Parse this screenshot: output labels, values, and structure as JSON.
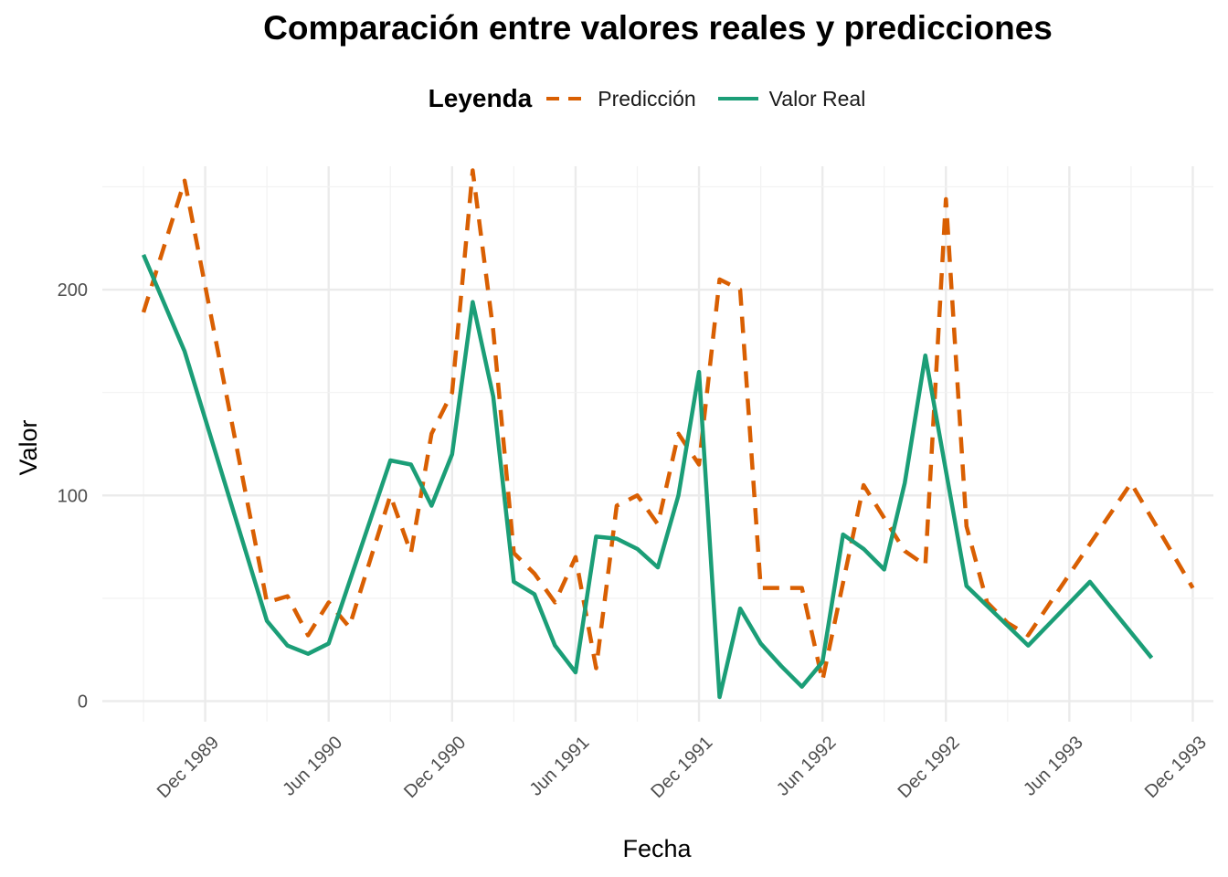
{
  "chart_data": {
    "type": "line",
    "title": "Comparación entre valores reales y predicciones",
    "xlabel": "Fecha",
    "ylabel": "Valor",
    "legend_title": "Leyenda",
    "legend_position": "top",
    "grid": true,
    "x_tick_labels": [
      "Dec 1989",
      "Jun 1990",
      "Dec 1990",
      "Jun 1991",
      "Dec 1991",
      "Jun 1992",
      "Dec 1992",
      "Jun 1993",
      "Dec 1993"
    ],
    "y_ticks": [
      0,
      100,
      200
    ],
    "ylim": [
      -10,
      260
    ],
    "xlim": [
      "1989-07",
      "1994-01"
    ],
    "series": [
      {
        "name": "Predicción",
        "color": "#D95F02",
        "style": "dashed",
        "points": [
          [
            "1989-09",
            189
          ],
          [
            "1989-11",
            253
          ],
          [
            "1990-03",
            48
          ],
          [
            "1990-04",
            51
          ],
          [
            "1990-05",
            32
          ],
          [
            "1990-06",
            48
          ],
          [
            "1990-07",
            36
          ],
          [
            "1990-09",
            100
          ],
          [
            "1990-10",
            72
          ],
          [
            "1990-11",
            130
          ],
          [
            "1990-12",
            150
          ],
          [
            "1991-01",
            258
          ],
          [
            "1991-02",
            180
          ],
          [
            "1991-03",
            72
          ],
          [
            "1991-04",
            62
          ],
          [
            "1991-05",
            48
          ],
          [
            "1991-06",
            70
          ],
          [
            "1991-07",
            16
          ],
          [
            "1991-08",
            95
          ],
          [
            "1991-09",
            100
          ],
          [
            "1991-10",
            86
          ],
          [
            "1991-11",
            130
          ],
          [
            "1991-12",
            115
          ],
          [
            "1992-01",
            205
          ],
          [
            "1992-02",
            200
          ],
          [
            "1992-03",
            55
          ],
          [
            "1992-05",
            55
          ],
          [
            "1992-06",
            10
          ],
          [
            "1992-08",
            105
          ],
          [
            "1992-10",
            73
          ],
          [
            "1992-11",
            66
          ],
          [
            "1992-12",
            244
          ],
          [
            "1993-01",
            85
          ],
          [
            "1993-02",
            48
          ],
          [
            "1993-03",
            38
          ],
          [
            "1993-04",
            32
          ],
          [
            "1993-09",
            106
          ],
          [
            "1993-12",
            55
          ]
        ]
      },
      {
        "name": "Valor Real",
        "color": "#1B9E77",
        "style": "solid",
        "points": [
          [
            "1989-09",
            217
          ],
          [
            "1989-11",
            170
          ],
          [
            "1990-03",
            39
          ],
          [
            "1990-04",
            27
          ],
          [
            "1990-05",
            23
          ],
          [
            "1990-06",
            28
          ],
          [
            "1990-09",
            117
          ],
          [
            "1990-10",
            115
          ],
          [
            "1990-11",
            95
          ],
          [
            "1990-12",
            120
          ],
          [
            "1991-01",
            194
          ],
          [
            "1991-02",
            148
          ],
          [
            "1991-03",
            58
          ],
          [
            "1991-04",
            52
          ],
          [
            "1991-05",
            27
          ],
          [
            "1991-06",
            14
          ],
          [
            "1991-07",
            80
          ],
          [
            "1991-08",
            79
          ],
          [
            "1991-09",
            74
          ],
          [
            "1991-10",
            65
          ],
          [
            "1991-11",
            100
          ],
          [
            "1991-12",
            160
          ],
          [
            "1992-01",
            2
          ],
          [
            "1992-02",
            45
          ],
          [
            "1992-03",
            28
          ],
          [
            "1992-04",
            17
          ],
          [
            "1992-05",
            7
          ],
          [
            "1992-06",
            19
          ],
          [
            "1992-07",
            81
          ],
          [
            "1992-08",
            74
          ],
          [
            "1992-09",
            64
          ],
          [
            "1992-10",
            106
          ],
          [
            "1992-11",
            168
          ],
          [
            "1993-01",
            56
          ],
          [
            "1993-04",
            27
          ],
          [
            "1993-07",
            58
          ],
          [
            "1993-10",
            21
          ]
        ]
      }
    ]
  }
}
